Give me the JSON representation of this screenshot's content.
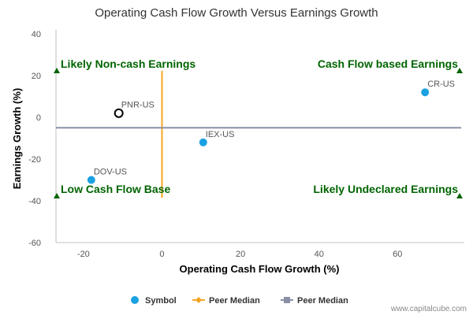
{
  "chart_data": {
    "type": "scatter",
    "title": "Operating Cash Flow Growth Versus Earnings Growth",
    "xlabel": "Operating Cash Flow Growth (%)",
    "ylabel": "Earnings Growth (%)",
    "xlim": [
      -27,
      77
    ],
    "ylim": [
      -60,
      40
    ],
    "x_ticks": [
      -20,
      0,
      20,
      40,
      60
    ],
    "y_ticks": [
      40,
      20,
      0,
      -20,
      -40,
      -60
    ],
    "grid": false,
    "legend_position": "bottom",
    "points": [
      {
        "label": "CR-US",
        "x": 67,
        "y": 12,
        "style": "filled"
      },
      {
        "label": "PNR-US",
        "x": -11,
        "y": 2,
        "style": "hollow"
      },
      {
        "label": "IEX-US",
        "x": 10.5,
        "y": -12,
        "style": "filled"
      },
      {
        "label": "DOV-US",
        "x": -18,
        "y": -30,
        "style": "filled"
      }
    ],
    "peer_median_x": 0,
    "peer_median_y": -5,
    "quadrant_labels": {
      "top_left": "Likely Non-cash Earnings",
      "top_right": "Cash Flow based Earnings",
      "bottom_left": "Low Cash Flow Base",
      "bottom_right": "Likely Undeclared Earnings"
    },
    "legend": [
      {
        "name": "Symbol",
        "marker": "circle",
        "color": "#1ba1e2"
      },
      {
        "name": "Peer Median",
        "marker": "diamond",
        "color": "#f5a623"
      },
      {
        "name": "Peer Median",
        "marker": "square",
        "color": "#8a90a6"
      }
    ],
    "colors": {
      "point": "#1ba1e2",
      "vertical_median": "#f5a623",
      "horizontal_median": "#8a90a6",
      "quadrant_text": "#006400"
    }
  },
  "credit": "www.capitalcube.com"
}
